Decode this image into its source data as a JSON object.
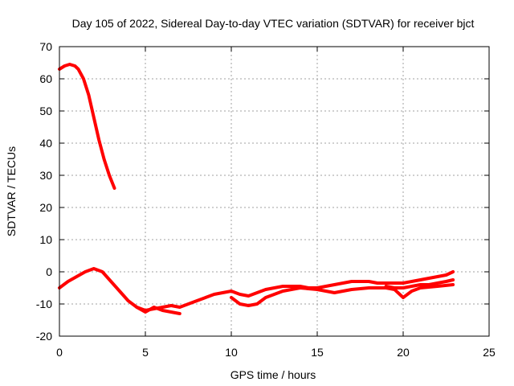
{
  "chart_data": {
    "type": "line",
    "title": "Day 105 of 2022, Sidereal Day-to-day VTEC variation (SDTVAR) for receiver bjct",
    "xlabel": "GPS time / hours",
    "ylabel": "SDTVAR / TECUs",
    "xlim": [
      0,
      25
    ],
    "ylim": [
      -20,
      70
    ],
    "xticks": [
      0,
      5,
      10,
      15,
      20,
      25
    ],
    "yticks": [
      -20,
      -10,
      0,
      10,
      20,
      30,
      40,
      50,
      60,
      70
    ],
    "xtick_labels": [
      "0",
      "5",
      "10",
      "15",
      "20",
      "25"
    ],
    "ytick_labels": [
      "-20",
      "-10",
      "0",
      "10",
      "20",
      "30",
      "40",
      "50",
      "60",
      "70"
    ],
    "grid": true,
    "line_color": "#ff0000",
    "series": [
      {
        "name": "segment-1",
        "x": [
          0,
          0.3,
          0.6,
          0.9,
          1.1,
          1.4,
          1.7,
          2.0,
          2.3,
          2.6,
          2.9,
          3.2
        ],
        "y": [
          63,
          64,
          64.5,
          64,
          63,
          60,
          55,
          48,
          41,
          35,
          30,
          26
        ]
      },
      {
        "name": "segment-2",
        "x": [
          0,
          0.5,
          1.0,
          1.5,
          2.0,
          2.5,
          3.0,
          3.5,
          4.0,
          4.5,
          5.0,
          5.5,
          6.0,
          6.5,
          7.0,
          7.5,
          8.0,
          8.5,
          9.0,
          9.5,
          10.0,
          10.5,
          11.0,
          11.5,
          12.0,
          12.5,
          13.0,
          13.5,
          14.0,
          14.5,
          15.0,
          15.5,
          16.0,
          16.5,
          17.0,
          17.5,
          18.0,
          18.5,
          19.0,
          19.5,
          20.0,
          20.5,
          21.0,
          21.5,
          22.0,
          22.5,
          22.9
        ],
        "y": [
          -5,
          -3,
          -1.5,
          0,
          1,
          0,
          -3,
          -6,
          -9,
          -11,
          -12,
          -11.5,
          -11,
          -10.5,
          -11,
          -10,
          -9,
          -8,
          -7,
          -6.5,
          -6,
          -7,
          -7.5,
          -6.5,
          -5.5,
          -5,
          -4.5,
          -4.5,
          -4.5,
          -5,
          -5,
          -4.5,
          -4,
          -3.5,
          -3,
          -3,
          -3,
          -3.5,
          -3.5,
          -3.5,
          -3.5,
          -3,
          -2.5,
          -2,
          -1.5,
          -1,
          0
        ]
      },
      {
        "name": "segment-3",
        "x": [
          4.5,
          5.0,
          5.5,
          6.0,
          6.5,
          7.0
        ],
        "y": [
          -11,
          -12.5,
          -11,
          -12,
          -12.5,
          -13
        ]
      },
      {
        "name": "segment-4",
        "x": [
          10.0,
          10.5,
          11.0,
          11.5,
          12.0,
          12.5,
          13.0,
          14.0,
          15.0,
          15.5,
          16.0,
          16.5,
          17.0,
          18.0,
          19.0,
          19.5,
          20.0,
          20.5,
          21.0,
          22.0,
          22.9
        ],
        "y": [
          -8,
          -10,
          -10.5,
          -10,
          -8,
          -7,
          -6,
          -5,
          -5.5,
          -6,
          -6.5,
          -6,
          -5.5,
          -5,
          -5,
          -5.5,
          -8,
          -6,
          -5,
          -4.5,
          -4
        ]
      },
      {
        "name": "segment-5",
        "x": [
          19.0,
          19.5,
          20.0,
          20.5,
          21.0,
          21.5,
          22.0,
          22.5,
          22.9
        ],
        "y": [
          -4.5,
          -5,
          -5,
          -4.5,
          -4,
          -4,
          -3.5,
          -3,
          -2.5
        ]
      }
    ]
  }
}
